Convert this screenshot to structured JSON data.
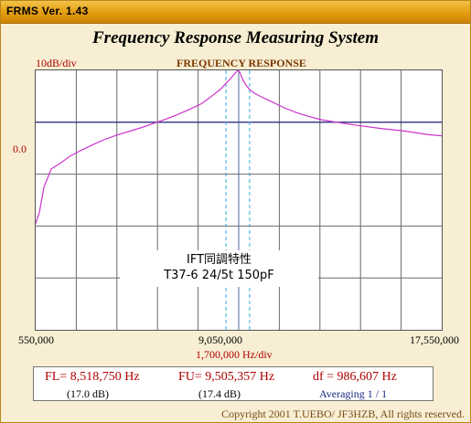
{
  "window": {
    "title": "FRMS   Ver. 1.43",
    "app_title": "Frequency Response Measuring System"
  },
  "plot": {
    "title": "FREQUENCY RESPONSE",
    "y_scale_label": "10dB/div",
    "ref_label": "0.0",
    "x_ticks": [
      "550,000",
      "9,050,000",
      "17,550,000"
    ],
    "x_scale_label": "1,700,000  Hz/div",
    "annotation_line1": "IFT同調特性",
    "annotation_line2": "T37-6 24/5t 150pF"
  },
  "chart_data": {
    "type": "line",
    "x_unit": "Hz",
    "y_unit": "dB",
    "xlim": [
      550000,
      17550000
    ],
    "ylim": [
      -40,
      10
    ],
    "reference_level": 0,
    "x_markers": [
      8518750,
      9050000,
      9505357
    ],
    "series": [
      {
        "color": "#cc33cc",
        "x": [
          550000,
          700000,
          900000,
          1200000,
          1550000,
          2000000,
          2500000,
          3000000,
          3500000,
          4000000,
          4500000,
          5000000,
          5500000,
          6000000,
          6500000,
          7000000,
          7500000,
          8000000,
          8300000,
          8500000,
          8700000,
          8850000,
          8950000,
          9020000,
          9050000,
          9100000,
          9200000,
          9350000,
          9500000,
          9700000,
          10000000,
          10500000,
          11000000,
          11500000,
          12000000,
          12500000,
          13000000,
          14000000,
          15000000,
          16000000,
          17000000,
          17550000
        ],
        "y": [
          -19.5,
          -17.5,
          -12.5,
          -9.0,
          -8.0,
          -6.5,
          -5.3,
          -4.2,
          -3.2,
          -2.4,
          -1.7,
          -1.0,
          -0.2,
          0.6,
          1.5,
          2.5,
          3.6,
          5.3,
          6.4,
          7.4,
          8.4,
          9.2,
          9.7,
          10.0,
          9.9,
          9.6,
          8.4,
          7.2,
          6.3,
          5.6,
          4.9,
          3.8,
          2.7,
          1.8,
          1.1,
          0.5,
          0.1,
          -0.6,
          -1.2,
          -1.7,
          -2.4,
          -2.6
        ]
      }
    ]
  },
  "measurements": {
    "fl": "FL= 8,518,750  Hz",
    "fl_db": "(17.0 dB)",
    "fu": "FU= 9,505,357  Hz",
    "fu_db": "(17.4 dB)",
    "df": "df = 986,607  Hz",
    "averaging": "Averaging   1 / 1"
  },
  "copyright": "Copyright 2001 T.UEBO/ JF3HZB, All rights reserved."
}
